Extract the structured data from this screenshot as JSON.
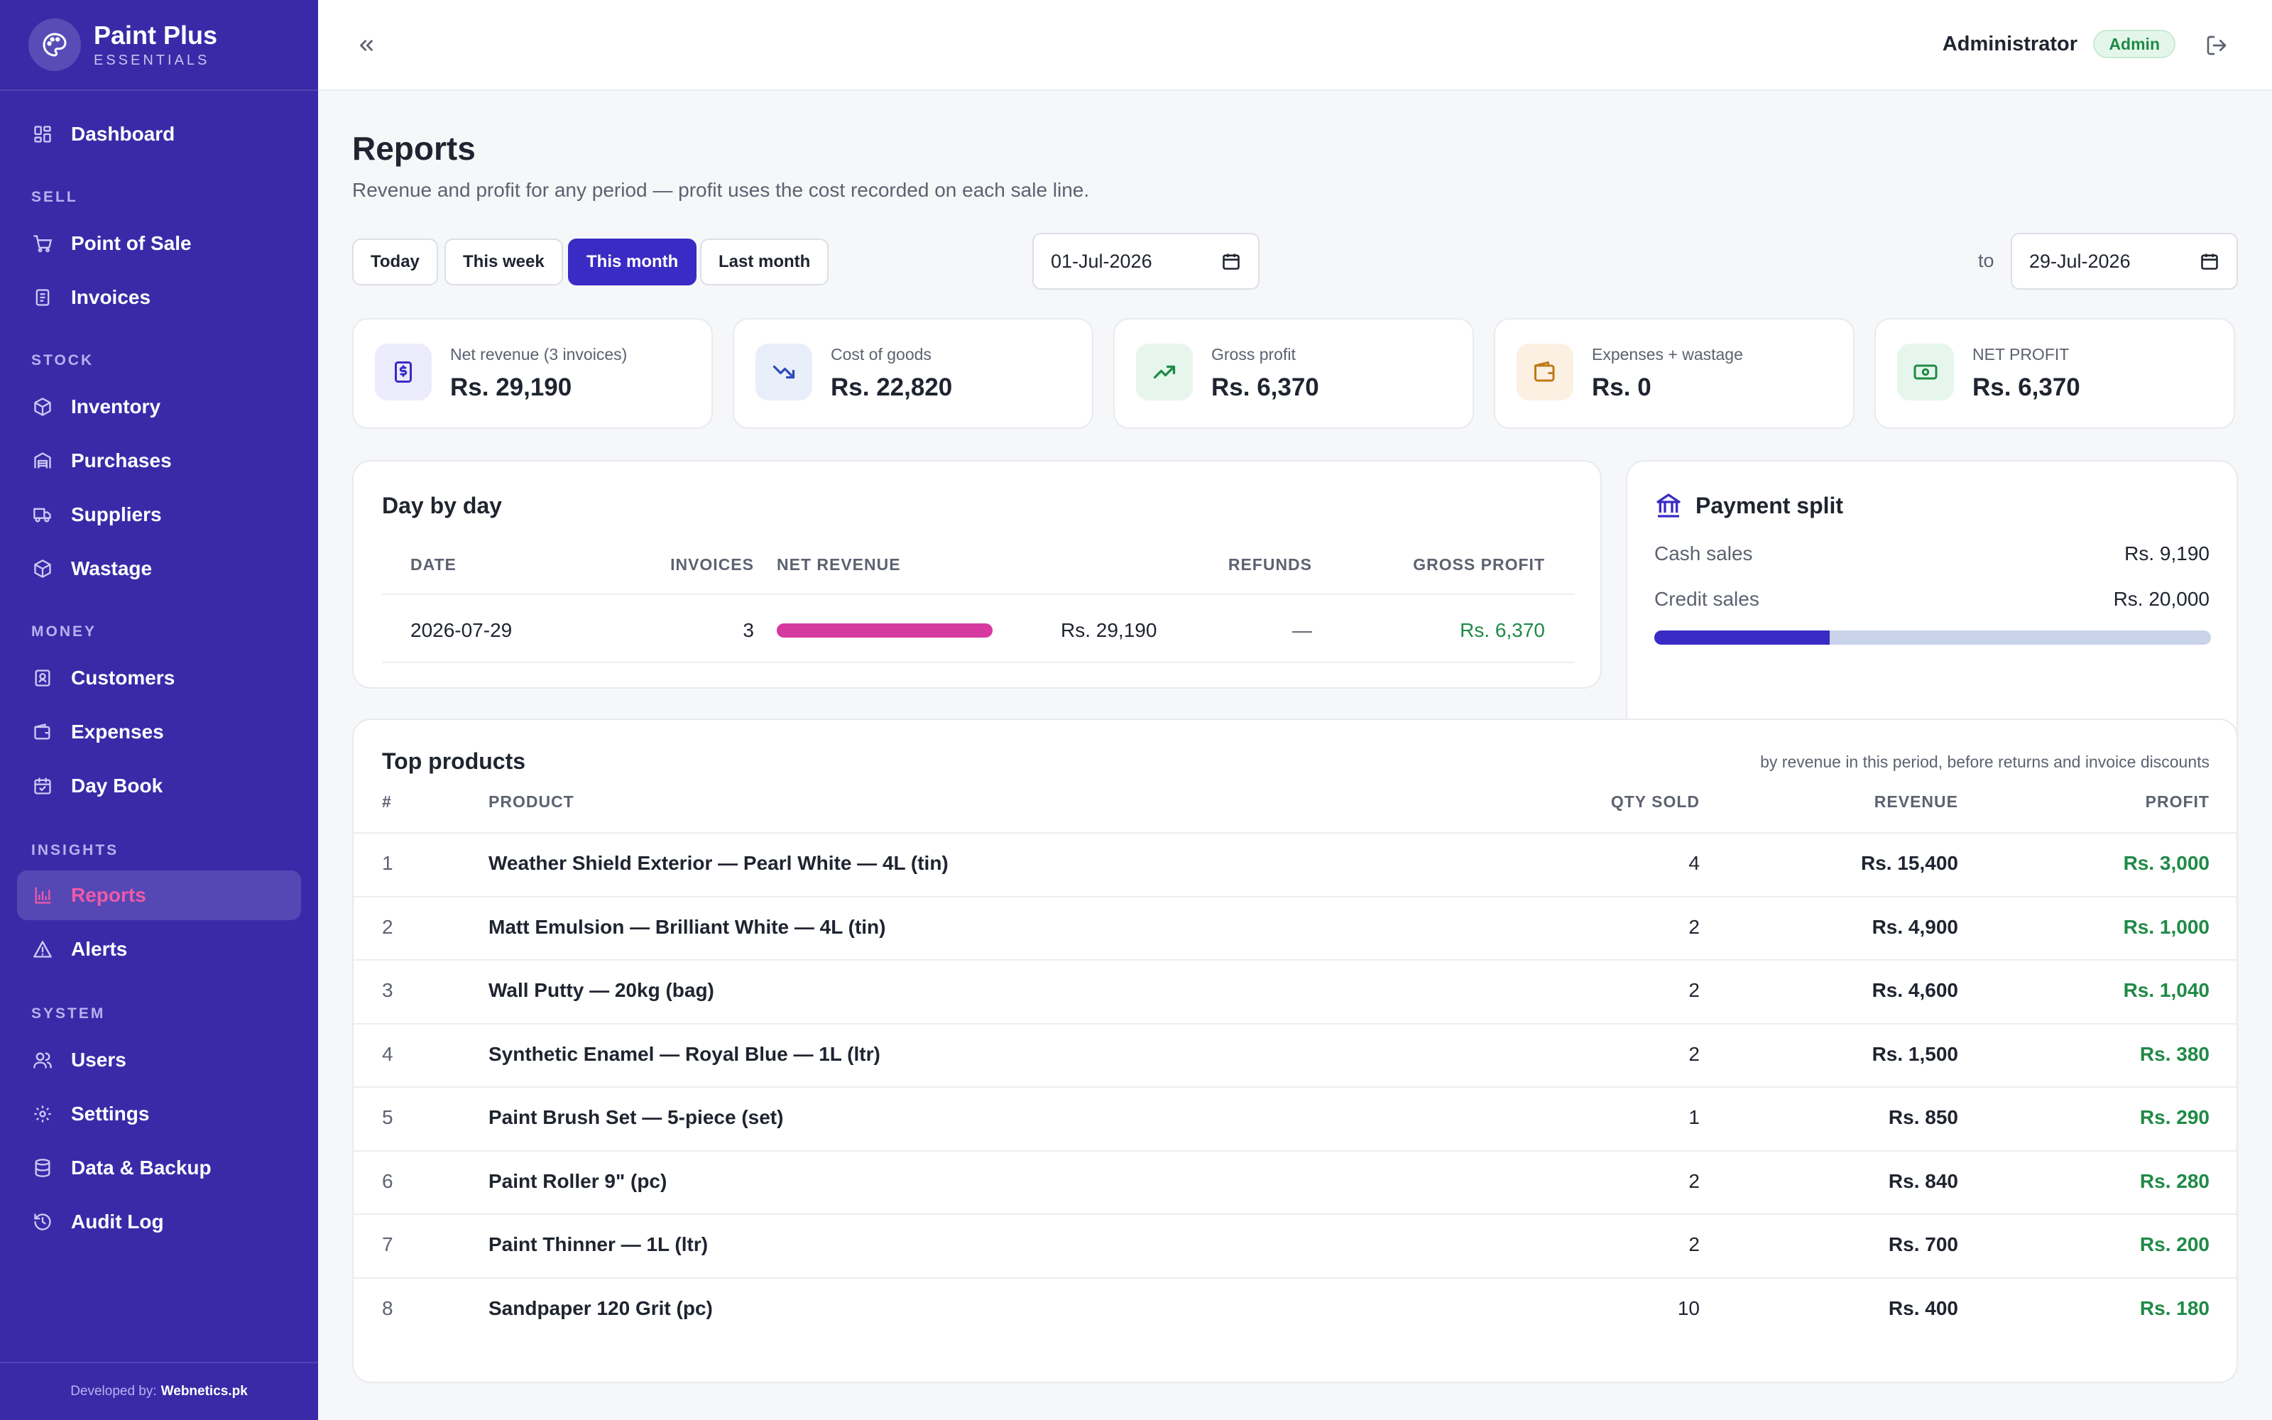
{
  "brand": {
    "name": "Paint Plus",
    "sub": "ESSENTIALS"
  },
  "sidebar": {
    "dashboard": "Dashboard",
    "sections": {
      "sell": "SELL",
      "stock": "STOCK",
      "money": "MONEY",
      "insights": "INSIGHTS",
      "system": "SYSTEM"
    },
    "items": {
      "pos": "Point of Sale",
      "invoices": "Invoices",
      "inventory": "Inventory",
      "purchases": "Purchases",
      "suppliers": "Suppliers",
      "wastage": "Wastage",
      "customers": "Customers",
      "expenses": "Expenses",
      "daybook": "Day Book",
      "reports": "Reports",
      "alerts": "Alerts",
      "users": "Users",
      "settings": "Settings",
      "data_backup": "Data & Backup",
      "audit_log": "Audit Log"
    },
    "active_item": "Reports",
    "footer_prefix": "Developed by:",
    "footer_link": "Webnetics.pk"
  },
  "header": {
    "user": "Administrator",
    "role": "Admin"
  },
  "page": {
    "title": "Reports",
    "subtitle": "Revenue and profit for any period — profit uses the cost recorded on each sale line.",
    "ranges": [
      "Today",
      "This week",
      "This month",
      "Last month"
    ],
    "active_range": "This month",
    "date_from": "01-Jul-2026",
    "date_to_label": "to",
    "date_to": "29-Jul-2026"
  },
  "stats": [
    {
      "label": "Net revenue (3 invoices)",
      "value": "Rs. 29,190",
      "icon": "receipt-icon",
      "color": "#3a2bc4",
      "bg": "#ecebfb"
    },
    {
      "label": "Cost of goods",
      "value": "Rs. 22,820",
      "icon": "trending-down-icon",
      "color": "#2f4bb8",
      "bg": "#e9eefb"
    },
    {
      "label": "Gross profit",
      "value": "Rs. 6,370",
      "icon": "trending-up-icon",
      "color": "#1f8a46",
      "bg": "#e6f6ec"
    },
    {
      "label": "Expenses + wastage",
      "value": "Rs. 0",
      "icon": "wallet-icon",
      "color": "#c07a16",
      "bg": "#fbf0e1"
    },
    {
      "label": "NET PROFIT",
      "value": "Rs. 6,370",
      "icon": "banknote-icon",
      "color": "#1f8a46",
      "bg": "#e6f6ec"
    }
  ],
  "day_by_day": {
    "title": "Day by day",
    "columns": {
      "date": "DATE",
      "invoices": "INVOICES",
      "net_revenue": "NET REVENUE",
      "refunds": "REFUNDS",
      "gross_profit": "GROSS PROFIT"
    },
    "rows": [
      {
        "date": "2026-07-29",
        "invoices": "3",
        "revenue": "Rs. 29,190",
        "revenue_fraction": 1.0,
        "refunds": "—",
        "gross_profit": "Rs. 6,370"
      }
    ],
    "bar_color": "#d63aa0"
  },
  "payment_split": {
    "title": "Payment split",
    "cash_label": "Cash sales",
    "cash_value": "Rs. 9,190",
    "credit_label": "Credit sales",
    "credit_value": "Rs. 20,000",
    "cash_fraction": 0.315,
    "cash_color": "#3a2bc4",
    "credit_color": "#c8d3ea"
  },
  "top_products": {
    "title": "Top products",
    "note": "by revenue in this period, before returns and invoice discounts",
    "columns": {
      "num": "#",
      "product": "PRODUCT",
      "qty": "QTY SOLD",
      "revenue": "REVENUE",
      "profit": "PROFIT"
    },
    "rows": [
      {
        "num": "1",
        "product": "Weather Shield Exterior — Pearl White — 4L (tin)",
        "qty": "4",
        "revenue": "Rs. 15,400",
        "profit": "Rs. 3,000"
      },
      {
        "num": "2",
        "product": "Matt Emulsion — Brilliant White — 4L (tin)",
        "qty": "2",
        "revenue": "Rs. 4,900",
        "profit": "Rs. 1,000"
      },
      {
        "num": "3",
        "product": "Wall Putty — 20kg (bag)",
        "qty": "2",
        "revenue": "Rs. 4,600",
        "profit": "Rs. 1,040"
      },
      {
        "num": "4",
        "product": "Synthetic Enamel — Royal Blue — 1L (ltr)",
        "qty": "2",
        "revenue": "Rs. 1,500",
        "profit": "Rs. 380"
      },
      {
        "num": "5",
        "product": "Paint Brush Set — 5-piece (set)",
        "qty": "1",
        "revenue": "Rs. 850",
        "profit": "Rs. 290"
      },
      {
        "num": "6",
        "product": "Paint Roller 9\" (pc)",
        "qty": "2",
        "revenue": "Rs. 840",
        "profit": "Rs. 280"
      },
      {
        "num": "7",
        "product": "Paint Thinner — 1L (ltr)",
        "qty": "2",
        "revenue": "Rs. 700",
        "profit": "Rs. 200"
      },
      {
        "num": "8",
        "product": "Sandpaper 120 Grit (pc)",
        "qty": "10",
        "revenue": "Rs. 400",
        "profit": "Rs. 180"
      }
    ]
  },
  "colors": {
    "sidebar": "#3a2aa8",
    "accent": "#3a2bc4",
    "active_nav": "#ef5aa8",
    "profit": "#1f8a46"
  }
}
